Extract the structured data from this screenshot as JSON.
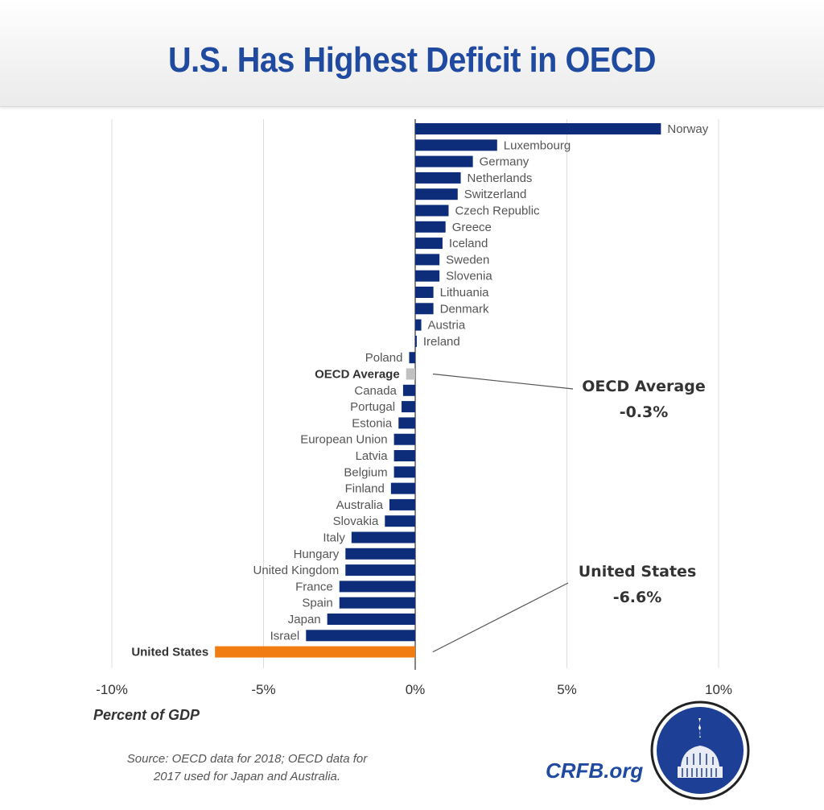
{
  "header": {
    "title": "U.S. Has Highest Deficit in OECD"
  },
  "chart_data": {
    "type": "bar",
    "orientation": "horizontal",
    "title": "U.S. Has Highest Deficit in OECD",
    "xlabel": "Percent of GDP",
    "ylabel": "",
    "xlim": [
      -10,
      10
    ],
    "xticks": [
      -10,
      -5,
      0,
      5,
      10
    ],
    "xtick_labels": [
      "-10%",
      "-5%",
      "0%",
      "5%",
      "10%"
    ],
    "grid": true,
    "categories": [
      "Norway",
      "Luxembourg",
      "Germany",
      "Netherlands",
      "Switzerland",
      "Czech Republic",
      "Greece",
      "Iceland",
      "Sweden",
      "Slovenia",
      "Lithuania",
      "Denmark",
      "Austria",
      "Ireland",
      "Poland",
      "OECD Average",
      "Canada",
      "Portugal",
      "Estonia",
      "European Union",
      "Latvia",
      "Belgium",
      "Finland",
      "Australia",
      "Slovakia",
      "Italy",
      "Hungary",
      "United Kingdom",
      "France",
      "Spain",
      "Japan",
      "Israel",
      "United States"
    ],
    "values": [
      8.1,
      2.7,
      1.9,
      1.5,
      1.4,
      1.1,
      1.0,
      0.9,
      0.8,
      0.8,
      0.6,
      0.6,
      0.2,
      0.05,
      -0.2,
      -0.3,
      -0.4,
      -0.45,
      -0.55,
      -0.7,
      -0.7,
      -0.7,
      -0.8,
      -0.85,
      -1.0,
      -2.1,
      -2.3,
      -2.3,
      -2.5,
      -2.5,
      -2.9,
      -3.6,
      -6.6
    ],
    "highlight": {
      "OECD Average": "#c0c0c0",
      "United States": "#f07c12"
    },
    "bold_labels": [
      "OECD Average",
      "United States"
    ],
    "bar_color": "#0d2d7a",
    "annotations": [
      {
        "target": "OECD Average",
        "title": "OECD Average",
        "value": "-0.3%"
      },
      {
        "target": "United States",
        "title": "United States",
        "value": "-6.6%"
      }
    ]
  },
  "footer": {
    "xlabel": "Percent of GDP",
    "source_line1": "Source: OECD data for 2018; OECD data for",
    "source_line2": "2017 used for Japan and Australia.",
    "brand": "CRFB.org",
    "logo_icon": "capitol-dome-logo-icon"
  }
}
